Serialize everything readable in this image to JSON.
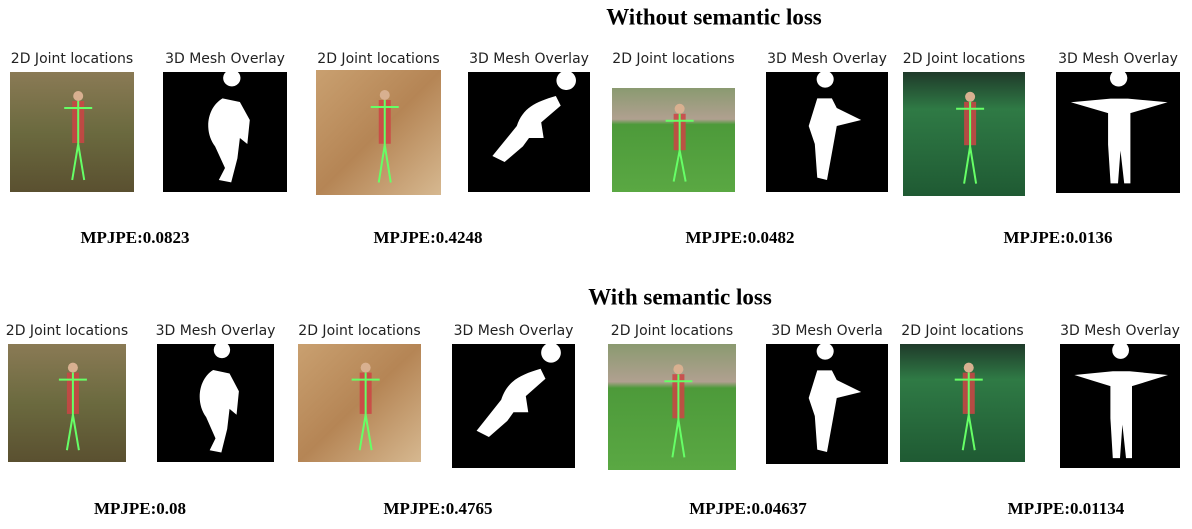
{
  "sections": [
    {
      "title": "Without semantic loss",
      "panels": [
        {
          "joint_label": "2D Joint locations",
          "mesh_label": "3D Mesh Overlay",
          "metric": "MPJPE:0.0823"
        },
        {
          "joint_label": "2D Joint locations",
          "mesh_label": "3D Mesh Overlay",
          "metric": "MPJPE:0.4248"
        },
        {
          "joint_label": "2D Joint locations",
          "mesh_label": "3D Mesh Overlay",
          "metric": "MPJPE:0.0482"
        },
        {
          "joint_label": "2D Joint locations",
          "mesh_label": "3D Mesh Overlay",
          "metric": "MPJPE:0.0136"
        }
      ]
    },
    {
      "title": "With semantic loss",
      "panels": [
        {
          "joint_label": "2D Joint locations",
          "mesh_label": "3D Mesh Overlay",
          "metric": "MPJPE:0.08"
        },
        {
          "joint_label": "2D Joint locations",
          "mesh_label": "3D Mesh Overlay",
          "metric": "MPJPE:0.4765"
        },
        {
          "joint_label": "2D Joint locations",
          "mesh_label": "3D Mesh Overla",
          "metric": "MPJPE:0.04637"
        },
        {
          "joint_label": "2D Joint locations",
          "mesh_label": "3D Mesh Overlay",
          "metric": "MPJPE:0.01134"
        }
      ]
    }
  ]
}
